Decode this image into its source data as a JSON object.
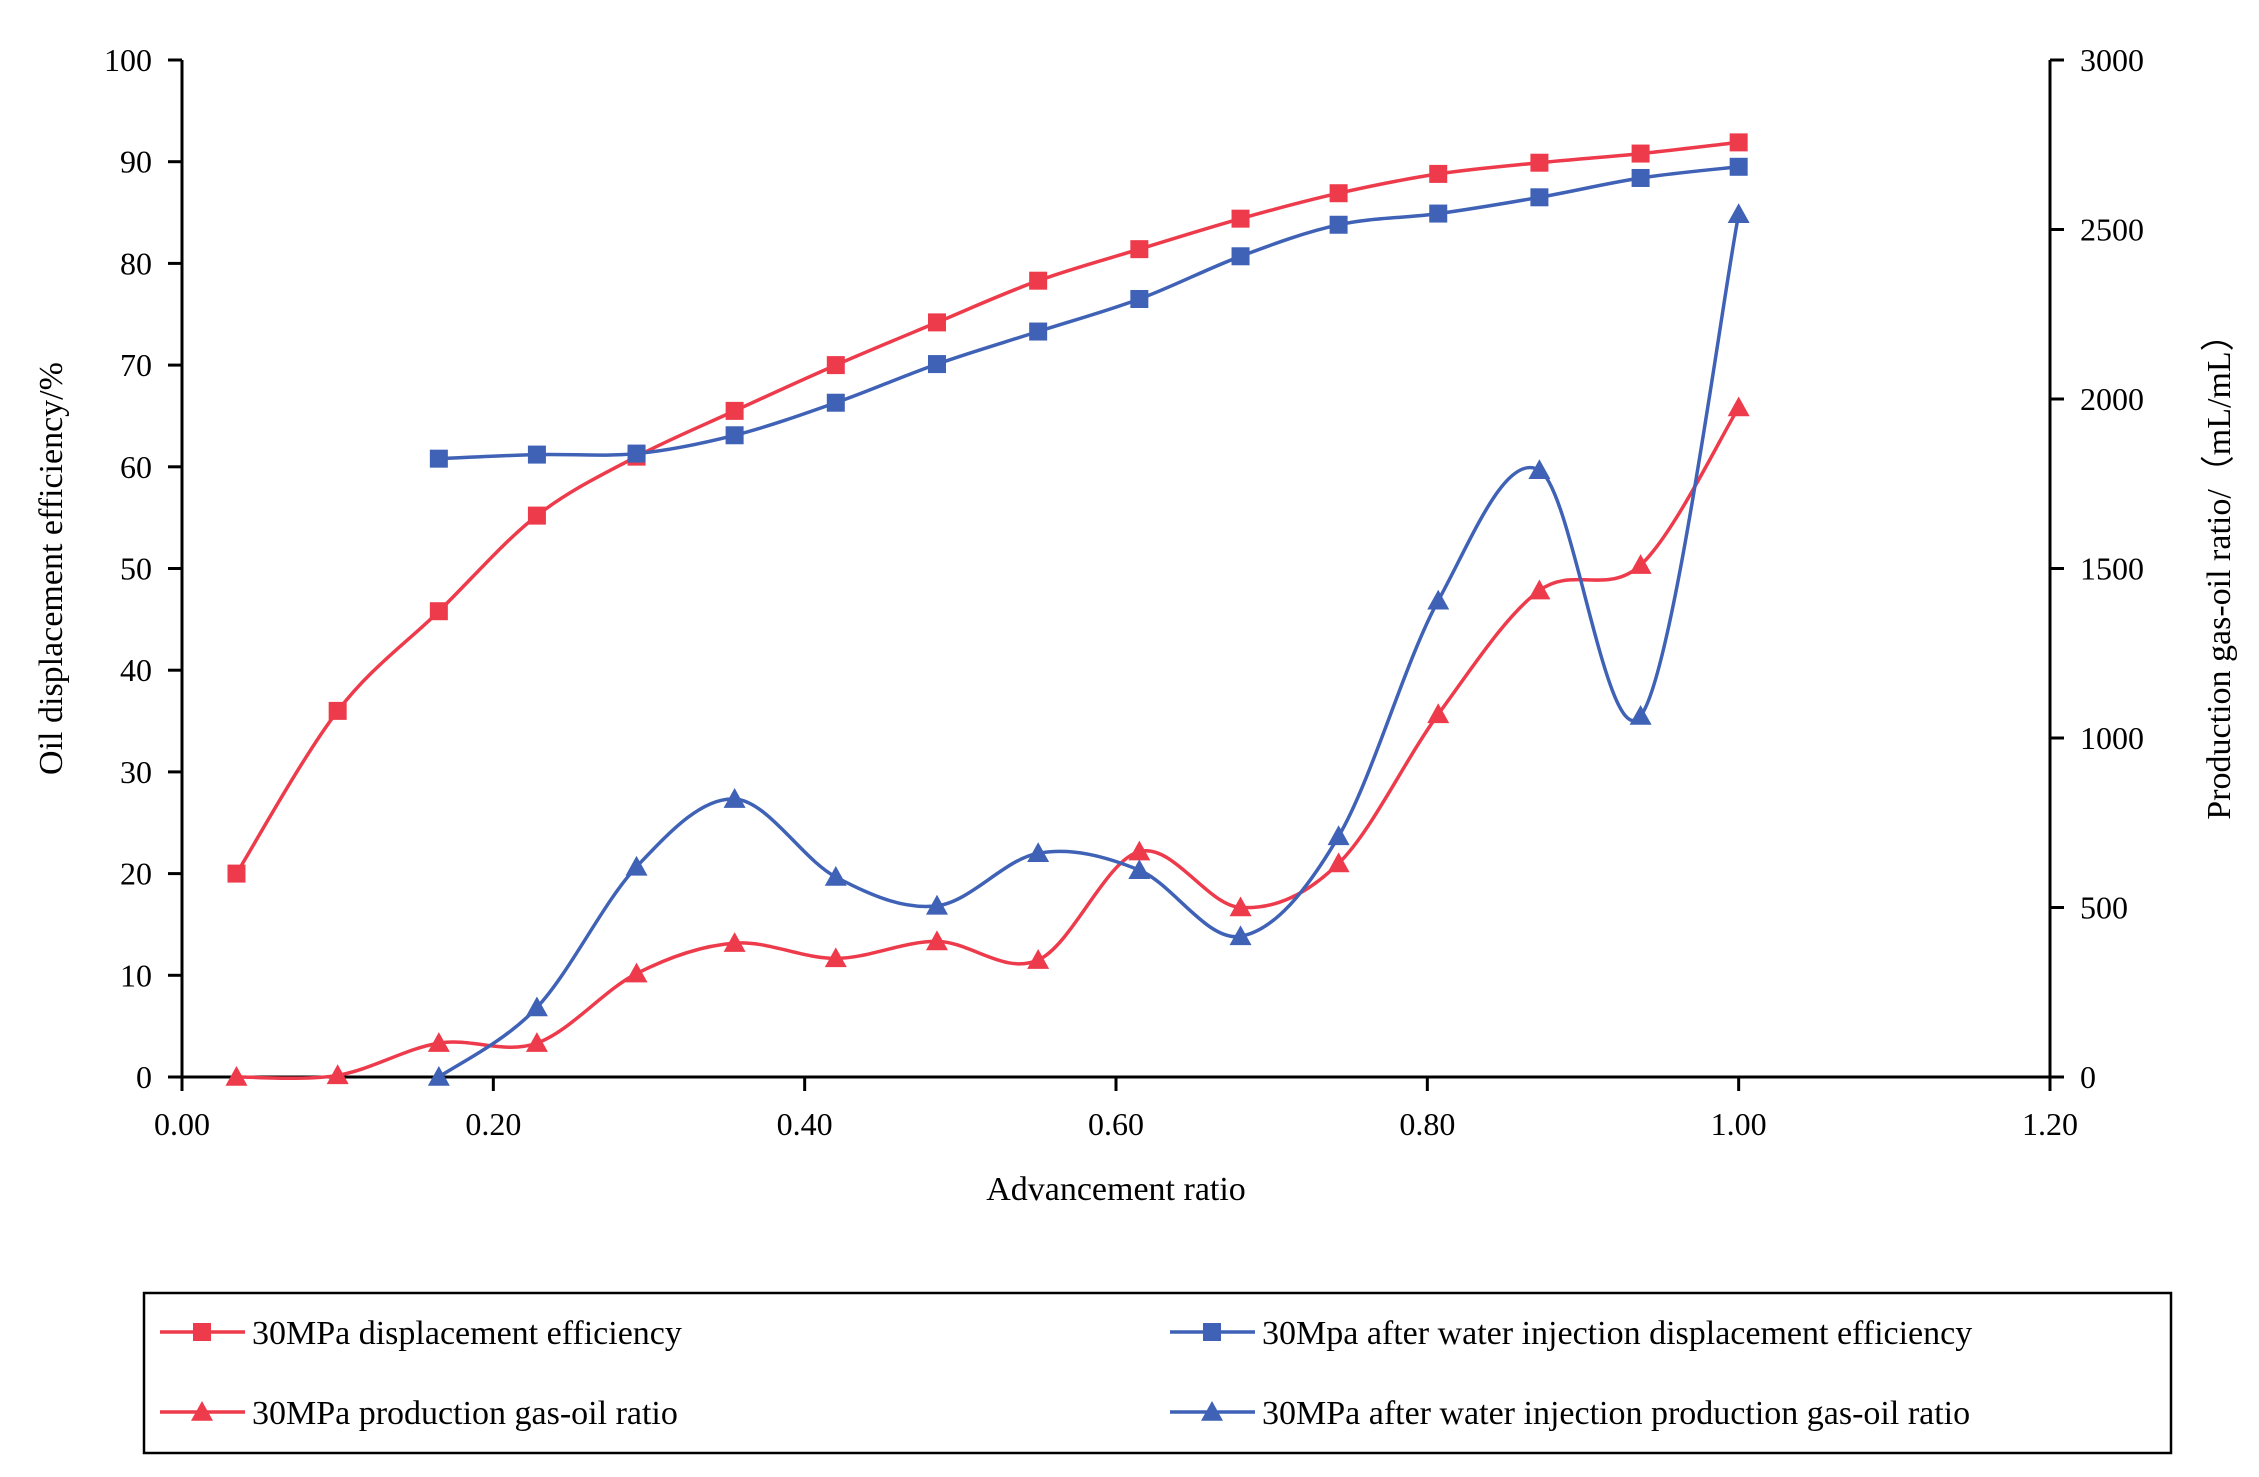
{
  "chart_data": {
    "type": "line",
    "title": "",
    "xlabel": "Advancement ratio",
    "ylabel_left": "Oil displacement efficiency/%",
    "ylabel_right": "Production gas-oil ratio/（mL/mL）",
    "xlim": [
      0,
      1.2
    ],
    "ylim_left": [
      0,
      100
    ],
    "ylim_right": [
      0,
      3000
    ],
    "x_ticks": [
      "0.00",
      "0.20",
      "0.40",
      "0.60",
      "0.80",
      "1.00",
      "1.20"
    ],
    "y_left_ticks": [
      "0",
      "10",
      "20",
      "30",
      "40",
      "50",
      "60",
      "70",
      "80",
      "90",
      "100"
    ],
    "y_right_ticks": [
      "0",
      "500",
      "1000",
      "1500",
      "2000",
      "2500",
      "3000"
    ],
    "grid": false,
    "legend_position": "bottom",
    "series": [
      {
        "name": "30MPa displacement efficiency",
        "axis": "left",
        "marker": "square",
        "color": "#ee3b4c",
        "x": [
          0.035,
          0.1,
          0.165,
          0.228,
          0.292,
          0.355,
          0.42,
          0.485,
          0.55,
          0.615,
          0.68,
          0.743,
          0.807,
          0.872,
          0.937,
          1.0
        ],
        "y": [
          20,
          36,
          45.8,
          55.2,
          61,
          65.5,
          70,
          74.2,
          78.3,
          81.4,
          84.4,
          86.9,
          88.8,
          89.9,
          90.8,
          91.9
        ]
      },
      {
        "name": "30Mpa after water injection displacement efficiency",
        "axis": "left",
        "marker": "square",
        "color": "#3f62b6",
        "x": [
          0.165,
          0.228,
          0.292,
          0.355,
          0.42,
          0.485,
          0.55,
          0.615,
          0.68,
          0.743,
          0.807,
          0.872,
          0.937,
          1.0
        ],
        "y": [
          60.8,
          61.2,
          61.3,
          63.1,
          66.3,
          70.1,
          73.3,
          76.5,
          80.7,
          83.8,
          84.9,
          86.5,
          88.4,
          89.5
        ]
      },
      {
        "name": "30MPa production gas-oil ratio",
        "axis": "right",
        "marker": "triangle",
        "color": "#ee3b4c",
        "x": [
          0.035,
          0.1,
          0.165,
          0.228,
          0.292,
          0.355,
          0.42,
          0.485,
          0.55,
          0.615,
          0.68,
          0.743,
          0.807,
          0.872,
          0.937,
          1.0
        ],
        "y": [
          0,
          5,
          100,
          100,
          305,
          395,
          350,
          400,
          345,
          665,
          500,
          630,
          1070,
          1435,
          1510,
          1975
        ]
      },
      {
        "name": "30MPa after water injection production gas-oil ratio",
        "axis": "right",
        "marker": "triangle",
        "color": "#3f62b6",
        "x": [
          0.165,
          0.228,
          0.292,
          0.355,
          0.42,
          0.485,
          0.55,
          0.615,
          0.68,
          0.743,
          0.807,
          0.872,
          0.937,
          1.0
        ],
        "y": [
          0,
          205,
          620,
          820,
          590,
          505,
          660,
          610,
          415,
          710,
          1405,
          1790,
          1065,
          2545
        ]
      }
    ]
  }
}
